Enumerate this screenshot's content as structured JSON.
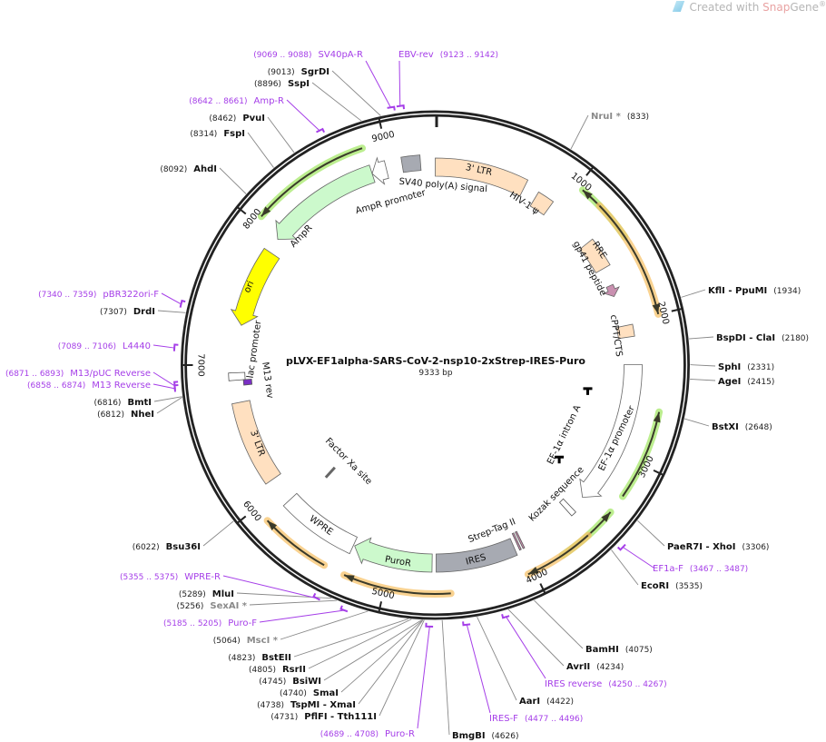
{
  "watermark": {
    "prefix": "Created with ",
    "brand_a": "Snap",
    "brand_b": "Gene",
    "mark": "®"
  },
  "plasmid": {
    "name": "pLVX-EF1alpha-SARS-CoV-2-nsp10-2xStrep-IRES-Puro",
    "length_label": "9333 bp",
    "length": 9333
  },
  "ticks": [
    "1000",
    "2000",
    "3000",
    "4000",
    "5000",
    "6000",
    "7000",
    "8000",
    "9000"
  ],
  "colors": {
    "ltr": "#ffe0c0",
    "gray": "#a7aab2",
    "marker_green": "#ccf9cc",
    "ori": "#ffff00",
    "peptide": "#c990b0",
    "primer": "#a53ee8",
    "orf_orange": "#f7c36b",
    "orf_green": "#a6e86a"
  },
  "features": [
    {
      "label": "3' LTR",
      "start": 0,
      "end": 690,
      "dir": 0,
      "color": "#ffe0c0"
    },
    {
      "label": "HIV-1 ψ",
      "start": 800,
      "end": 930,
      "dir": 0,
      "color": "#ffe0c0"
    },
    {
      "label": "RRE",
      "start": 1330,
      "end": 1560,
      "dir": 0,
      "color": "#ffe0c0"
    },
    {
      "label": "gp41 peptide",
      "start": 1700,
      "end": 1790,
      "dir": 1,
      "color": "#c990b0"
    },
    {
      "label": "cPPT/CTS",
      "start": 2030,
      "end": 2120,
      "dir": 0,
      "color": "#ffe0c0"
    },
    {
      "label": "EF-1α promoter",
      "start": 2330,
      "end": 3420,
      "dir": 1,
      "color": "#ffffff"
    },
    {
      "label": "EF-1α intron A",
      "start": 2560,
      "end": 3280,
      "dir": 0,
      "color": "none"
    },
    {
      "label": "Kozak sequence",
      "start": 3545,
      "end": 3560,
      "dir": 0,
      "color": "#ffffff"
    },
    {
      "label": "Strep-Tag II",
      "start": 3990,
      "end": 4030,
      "dir": 0,
      "color": "#c990b0"
    },
    {
      "label": "IRES",
      "start": 4060,
      "end": 4660,
      "dir": 0,
      "color": "#a7aab2"
    },
    {
      "label": "PuroR",
      "start": 4690,
      "end": 5290,
      "dir": 1,
      "color": "#ccf9cc"
    },
    {
      "label": "WPRE",
      "start": 5300,
      "end": 5890,
      "dir": 0,
      "color": "#ffffff"
    },
    {
      "label": "3' LTR",
      "start": 6090,
      "end": 6720,
      "dir": 0,
      "color": "#ffe0c0"
    },
    {
      "label": "lac promoter",
      "start": 6900,
      "end": 6930,
      "dir": -1,
      "color": "#ffffff"
    },
    {
      "label": "M13 rev",
      "start": 6858,
      "end": 6874,
      "dir": -1,
      "color": "#7a2fc4"
    },
    {
      "label": "ori",
      "start": 7300,
      "end": 7890,
      "dir": -1,
      "color": "#ffff00"
    },
    {
      "label": "AmpR",
      "start": 8000,
      "end": 8860,
      "dir": -1,
      "color": "#ccf9cc"
    },
    {
      "label": "AmpR promoter",
      "start": 8860,
      "end": 8970,
      "dir": -1,
      "color": "#ffffff"
    },
    {
      "label": "SV40 poly(A) signal",
      "start": 9090,
      "end": 9225,
      "dir": 0,
      "color": "#a7aab2"
    },
    {
      "label": "Factor Xa site",
      "start": 5820,
      "end": 5830,
      "dir": 0,
      "color": "#ffffff"
    }
  ],
  "orfs": [
    {
      "start": 8050,
      "end": 8850,
      "dir": -1,
      "color": "#a6e86a"
    },
    {
      "start": 1040,
      "end": 1450,
      "dir": -1,
      "color": "#a6e86a"
    },
    {
      "start": 1190,
      "end": 2000,
      "dir": 1,
      "color": "#f7c36b"
    },
    {
      "start": 2640,
      "end": 3240,
      "dir": -1,
      "color": "#a6e86a"
    },
    {
      "start": 3370,
      "end": 3790,
      "dir": -1,
      "color": "#a6e86a"
    },
    {
      "start": 3580,
      "end": 4045,
      "dir": 1,
      "color": "#f7c36b"
    },
    {
      "start": 4565,
      "end": 5275,
      "dir": 1,
      "color": "#f7c36b"
    },
    {
      "start": 5420,
      "end": 5890,
      "dir": 1,
      "color": "#f7c36b"
    }
  ],
  "sites": [
    {
      "name": "NruI *",
      "loc": "(833)",
      "pos": 833,
      "muted": true
    },
    {
      "name": "KflI  - PpuMI",
      "loc": "(1934)",
      "pos": 1934
    },
    {
      "name": "BspDI  - ClaI",
      "loc": "(2180)",
      "pos": 2180
    },
    {
      "name": "SphI",
      "loc": "(2331)",
      "pos": 2331
    },
    {
      "name": "AgeI",
      "loc": "(2415)",
      "pos": 2415
    },
    {
      "name": "BstXI",
      "loc": "(2648)",
      "pos": 2648
    },
    {
      "name": "PaeR7I  - XhoI",
      "loc": "(3306)",
      "pos": 3306
    },
    {
      "name": "EcoRI",
      "loc": "(3535)",
      "pos": 3535
    },
    {
      "name": "BamHI",
      "loc": "(4075)",
      "pos": 4075
    },
    {
      "name": "AvrII",
      "loc": "(4234)",
      "pos": 4234
    },
    {
      "name": "AarI",
      "loc": "(4422)",
      "pos": 4422
    },
    {
      "name": "BmgBI",
      "loc": "(4626)",
      "pos": 4626
    },
    {
      "name": "PflFI  - Tth111I",
      "loc": "(4731)",
      "pos": 4731
    },
    {
      "name": "TspMI  - XmaI",
      "loc": "(4738)",
      "pos": 4738
    },
    {
      "name": "SmaI",
      "loc": "(4740)",
      "pos": 4740
    },
    {
      "name": "BsiWI",
      "loc": "(4745)",
      "pos": 4745
    },
    {
      "name": "RsrII",
      "loc": "(4805)",
      "pos": 4805
    },
    {
      "name": "BstEII",
      "loc": "(4823)",
      "pos": 4823
    },
    {
      "name": "MscI *",
      "loc": "(5064)",
      "pos": 5064,
      "muted": true
    },
    {
      "name": "SexAI *",
      "loc": "(5256)",
      "pos": 5256,
      "muted": true
    },
    {
      "name": "MluI",
      "loc": "(5289)",
      "pos": 5289
    },
    {
      "name": "Bsu36I",
      "loc": "(6022)",
      "pos": 6022
    },
    {
      "name": "NheI",
      "loc": "(6812)",
      "pos": 6812
    },
    {
      "name": "BmtI",
      "loc": "(6816)",
      "pos": 6816
    },
    {
      "name": "DrdI",
      "loc": "(7307)",
      "pos": 7307
    },
    {
      "name": "AhdI",
      "loc": "(8092)",
      "pos": 8092
    },
    {
      "name": "FspI",
      "loc": "(8314)",
      "pos": 8314
    },
    {
      "name": "PvuI",
      "loc": "(8462)",
      "pos": 8462
    },
    {
      "name": "SspI",
      "loc": "(8896)",
      "pos": 8896
    },
    {
      "name": "SgrDI",
      "loc": "(9013)",
      "pos": 9013
    }
  ],
  "primers": [
    {
      "name": "SV40pA-R",
      "loc": "(9069 .. 9088)",
      "start": 9069,
      "end": 9088
    },
    {
      "name": "EBV-rev",
      "loc": "(9123 .. 9142)",
      "start": 9123,
      "end": 9142
    },
    {
      "name": "Amp-R",
      "loc": "(8642 .. 8661)",
      "start": 8642,
      "end": 8661
    },
    {
      "name": "pBR322ori-F",
      "loc": "(7340 .. 7359)",
      "start": 7340,
      "end": 7359
    },
    {
      "name": "L4440",
      "loc": "(7089 .. 7106)",
      "start": 7089,
      "end": 7106
    },
    {
      "name": "M13/pUC Reverse",
      "loc": "(6871 .. 6893)",
      "start": 6871,
      "end": 6893
    },
    {
      "name": "M13 Reverse",
      "loc": "(6858 .. 6874)",
      "start": 6858,
      "end": 6874
    },
    {
      "name": "WPRE-R",
      "loc": "(5355 .. 5375)",
      "start": 5355,
      "end": 5375
    },
    {
      "name": "Puro-F",
      "loc": "(5185 .. 5205)",
      "start": 5185,
      "end": 5205
    },
    {
      "name": "Puro-R",
      "loc": "(4689 .. 4708)",
      "start": 4689,
      "end": 4708
    },
    {
      "name": "IRES-F",
      "loc": "(4477 .. 4496)",
      "start": 4477,
      "end": 4496
    },
    {
      "name": "IRES reverse",
      "loc": "(4250 .. 4267)",
      "start": 4250,
      "end": 4267
    },
    {
      "name": "EF1a-F",
      "loc": "(3467 .. 3487)",
      "start": 3467,
      "end": 3487
    }
  ]
}
